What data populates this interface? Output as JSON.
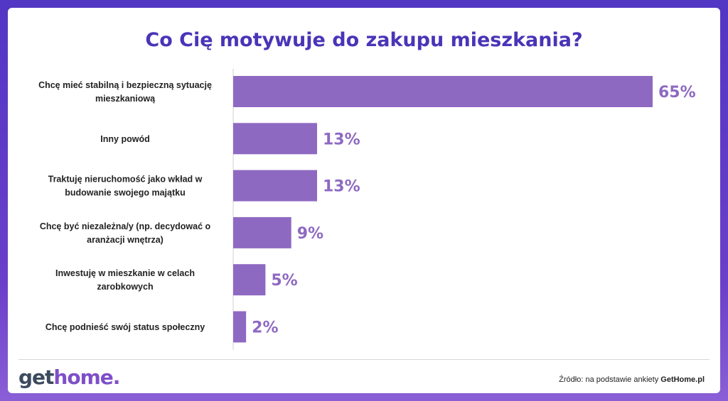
{
  "title": "Co Cię motywuje do zakupu mieszkania?",
  "colors": {
    "bar": "#8e69c2",
    "value_text": "#8e69c2",
    "title": "#4a34b8",
    "axis": "#d0d0d0"
  },
  "chart_data": {
    "type": "bar",
    "orientation": "horizontal",
    "title": "Co Cię motywuje do zakupu mieszkania?",
    "categories": [
      [
        "Chcę mieć stabilną i bezpieczną sytuację",
        "mieszkaniową"
      ],
      [
        "Inny powód"
      ],
      [
        "Traktuję nieruchomość jako wkład w",
        "budowanie swojego majątku"
      ],
      [
        "Chcę być niezależna/y (np. decydować o",
        "aranżacji wnętrza)"
      ],
      [
        "Inwestuję w mieszkanie w celach",
        "zarobkowych"
      ],
      [
        "Chcę podnieść swój status społeczny"
      ]
    ],
    "values": [
      65,
      13,
      13,
      9,
      5,
      2
    ],
    "value_labels": [
      "65%",
      "13%",
      "13%",
      "9%",
      "5%",
      "2%"
    ],
    "xlim": [
      0,
      65
    ],
    "grid": false
  },
  "footer": {
    "logo_part1": "get",
    "logo_part2": "home",
    "logo_part3": ".",
    "source_prefix": "Źródło: na podstawie ankiety ",
    "source_brand": "GetHome.pl"
  }
}
